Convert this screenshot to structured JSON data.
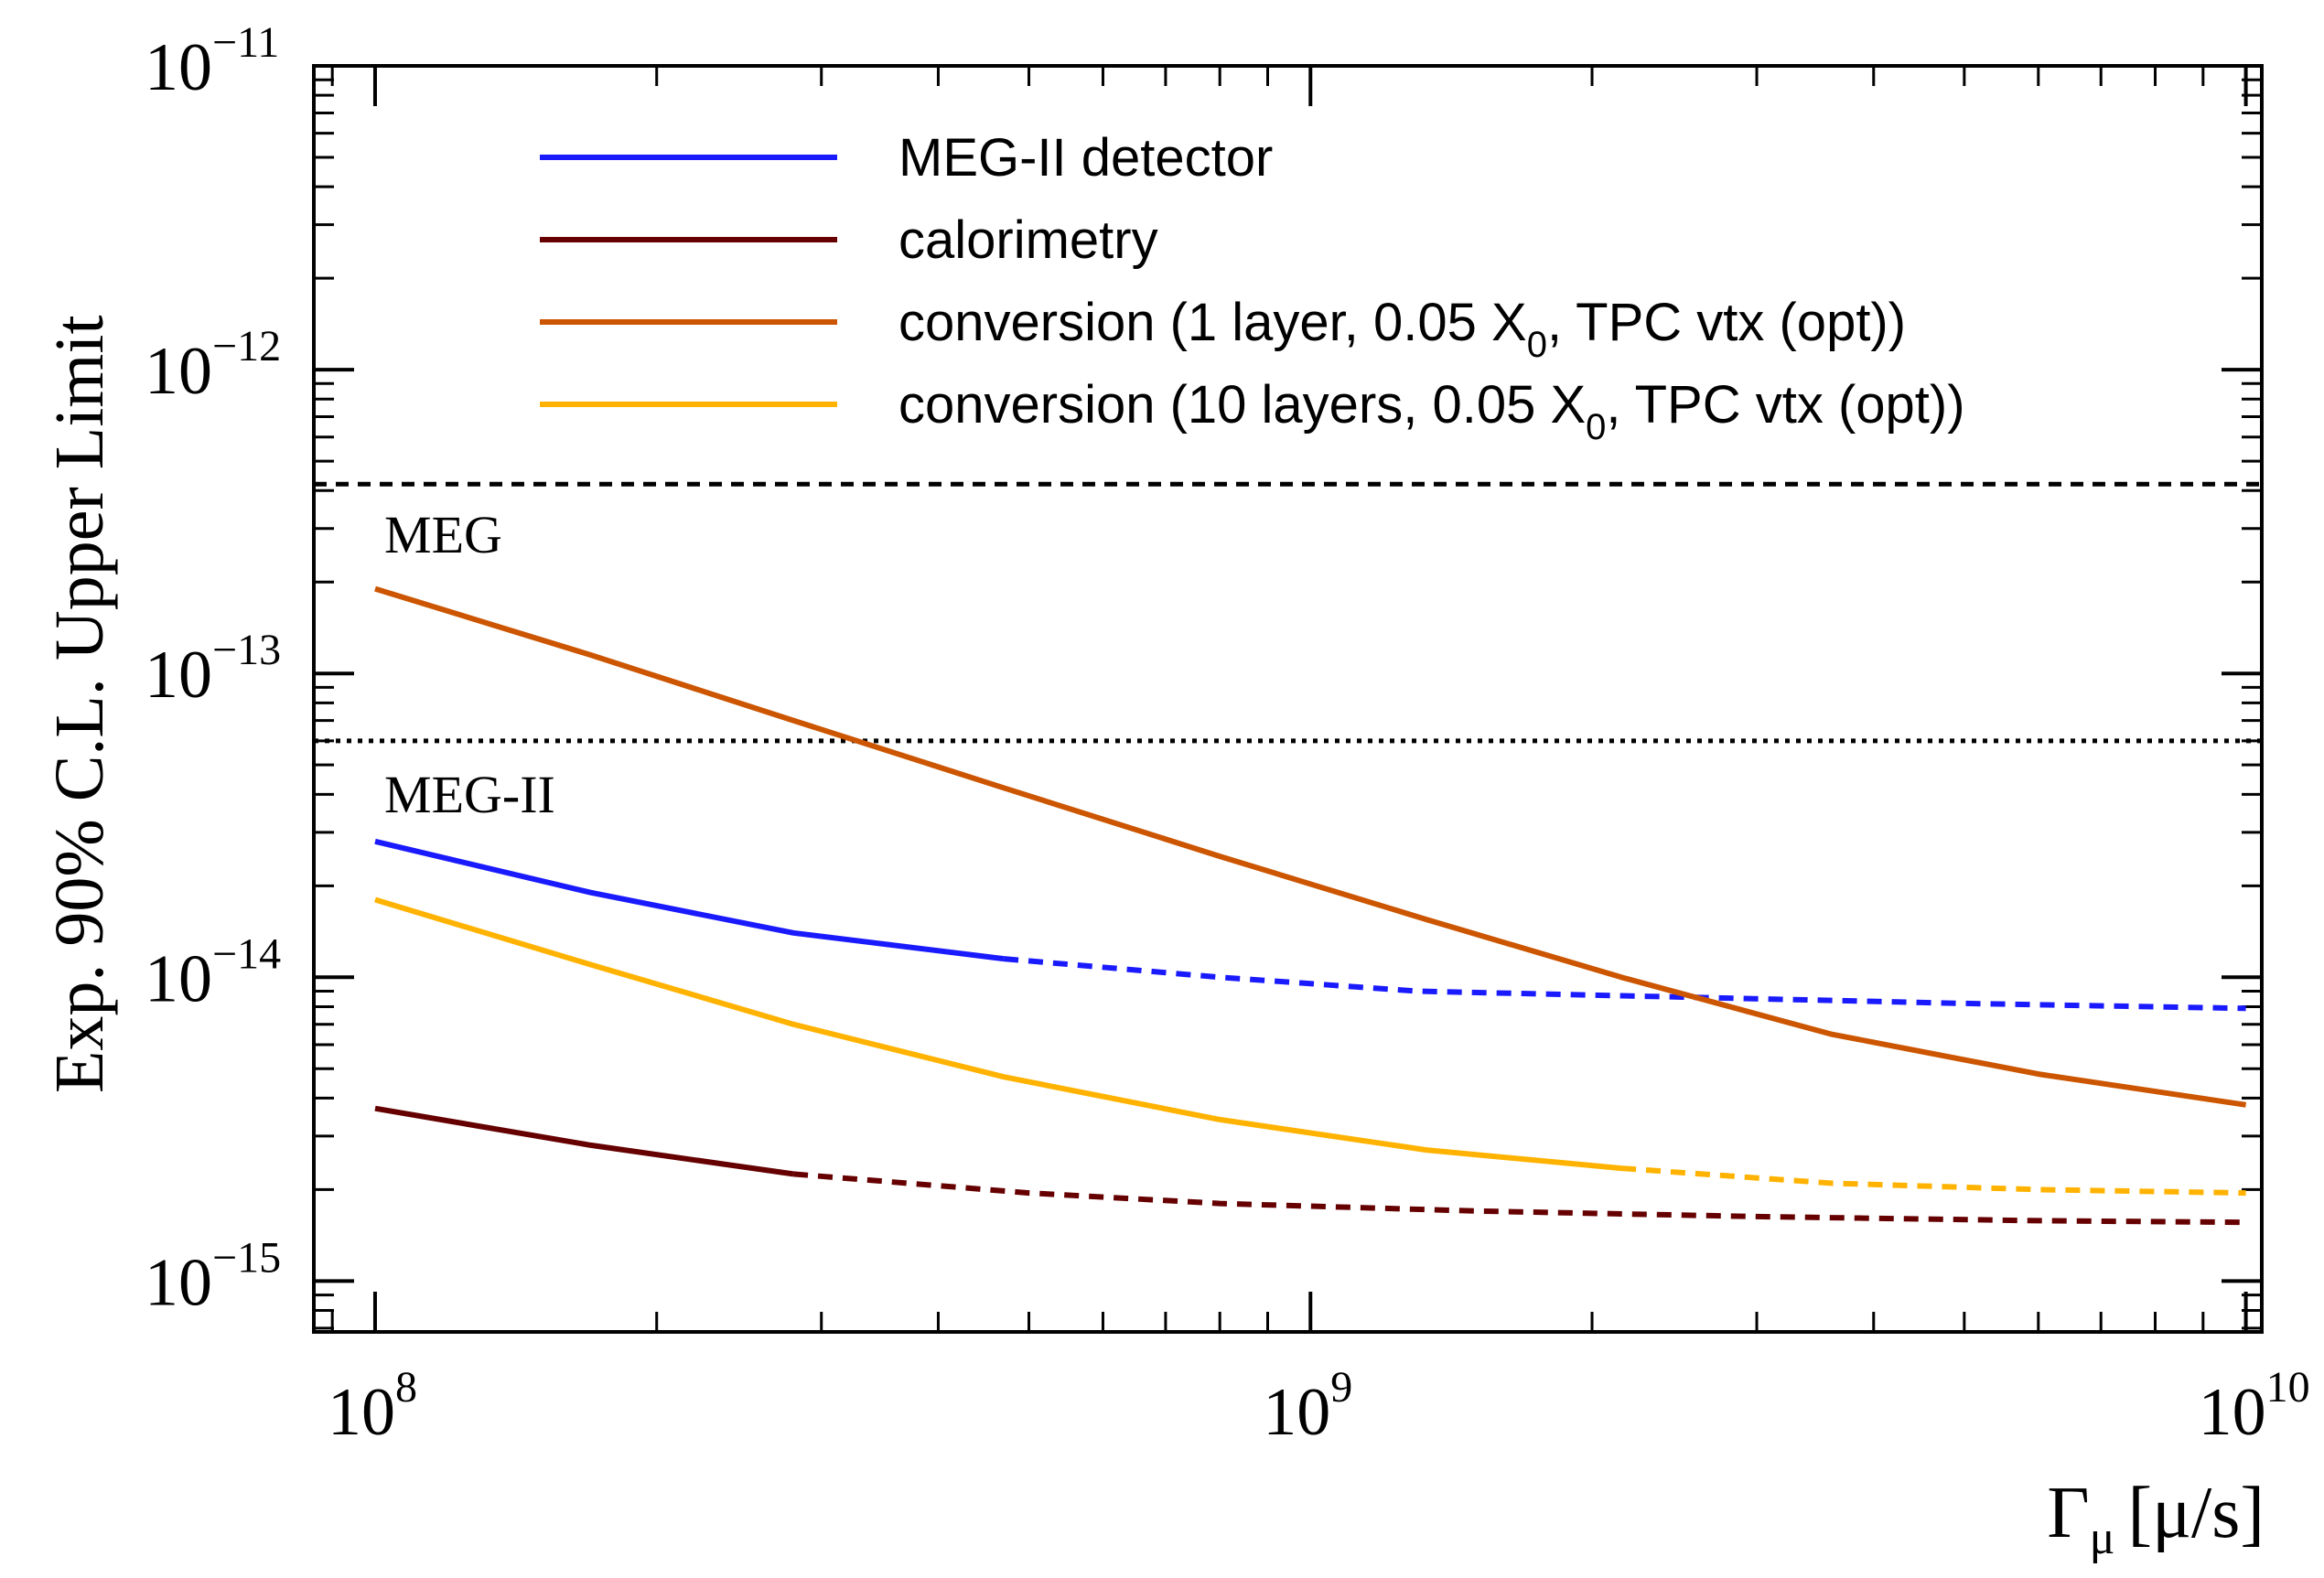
{
  "chart_data": {
    "type": "line",
    "title": "",
    "xlabel": "Γμ [μ/s]",
    "xlabel_main": "Γ",
    "xlabel_sub": "μ",
    "xlabel_unit": "[μ/s]",
    "ylabel": "Exp. 90% C.L. Upper Limit",
    "xscale": "log",
    "yscale": "log",
    "xlim": [
      86000000,
      10400000000
    ],
    "ylim": [
      6.8e-16,
      1e-11
    ],
    "x_ticks": [
      {
        "value": 100000000,
        "base": "10",
        "exp": "8"
      },
      {
        "value": 1000000000,
        "base": "10",
        "exp": "9"
      },
      {
        "value": 10000000000,
        "base": "10",
        "exp": "10"
      }
    ],
    "y_ticks": [
      {
        "value": 1e-11,
        "base": "10",
        "exp": "−11"
      },
      {
        "value": 1e-12,
        "base": "10",
        "exp": "−12"
      },
      {
        "value": 1e-13,
        "base": "10",
        "exp": "−13"
      },
      {
        "value": 1e-14,
        "base": "10",
        "exp": "−14"
      },
      {
        "value": 1e-15,
        "base": "10",
        "exp": "−15"
      }
    ],
    "grid": false,
    "legend": {
      "position": "top",
      "entries": [
        {
          "series": "MEG-II detector",
          "text": "MEG-II detector"
        },
        {
          "series": "calorimetry",
          "text": "calorimetry"
        },
        {
          "series": "conversion (1 layer)",
          "text": "conversion (1 layer, 0.05 X",
          "sub": "0",
          "after": ", TPC vtx (opt))"
        },
        {
          "series": "conversion (10 layers)",
          "text": "conversion (10 layers, 0.05 X",
          "sub": "0",
          "after": ", TPC vtx (opt))"
        }
      ]
    },
    "series": [
      {
        "name": "MEG-II detector",
        "color": "#1a1aff",
        "solid": {
          "x": [
            100000000,
            170000000,
            280000000,
            470000000
          ],
          "y": [
            2.8e-14,
            1.9e-14,
            1.4e-14,
            1.15e-14
          ]
        },
        "dashed": {
          "x": [
            470000000,
            800000000,
            1300000000,
            2500000000,
            5000000000,
            10000000000
          ],
          "y": [
            1.15e-14,
            1e-14,
            9e-15,
            8.6e-15,
            8.2e-15,
            7.9e-15
          ]
        }
      },
      {
        "name": "calorimetry",
        "color": "#660000",
        "solid": {
          "x": [
            100000000,
            170000000,
            280000000
          ],
          "y": [
            3.7e-15,
            2.8e-15,
            2.25e-15
          ]
        },
        "dashed": {
          "x": [
            280000000,
            500000000,
            800000000,
            1500000000,
            3000000000,
            6000000000,
            10000000000
          ],
          "y": [
            2.25e-15,
            1.95e-15,
            1.8e-15,
            1.7e-15,
            1.63e-15,
            1.58e-15,
            1.56e-15
          ]
        }
      },
      {
        "name": "conversion (1 layer)",
        "color": "#cc5500",
        "solid": {
          "x": [
            100000000,
            170000000,
            280000000,
            470000000,
            800000000,
            1330000000,
            2150000000,
            3600000000,
            6000000000,
            10000000000
          ],
          "y": [
            1.9e-13,
            1.15e-13,
            7e-14,
            4.2e-14,
            2.5e-14,
            1.55e-14,
            1e-14,
            6.5e-15,
            4.8e-15,
            3.8e-15
          ]
        },
        "dashed": null
      },
      {
        "name": "conversion (10 layers)",
        "color": "#ffb300",
        "solid": {
          "x": [
            100000000,
            170000000,
            280000000,
            470000000,
            800000000,
            1330000000,
            2150000000
          ],
          "y": [
            1.8e-14,
            1.1e-14,
            7e-15,
            4.7e-15,
            3.4e-15,
            2.7e-15,
            2.35e-15
          ]
        },
        "dashed": {
          "x": [
            2150000000,
            3600000000,
            6000000000,
            10000000000
          ],
          "y": [
            2.35e-15,
            2.1e-15,
            2e-15,
            1.95e-15
          ]
        }
      }
    ],
    "reference_lines": [
      {
        "label": "MEG",
        "y": 4.2e-13,
        "style": "dashed"
      },
      {
        "label": "MEG-II",
        "y": 6e-14,
        "style": "dotted"
      }
    ]
  }
}
